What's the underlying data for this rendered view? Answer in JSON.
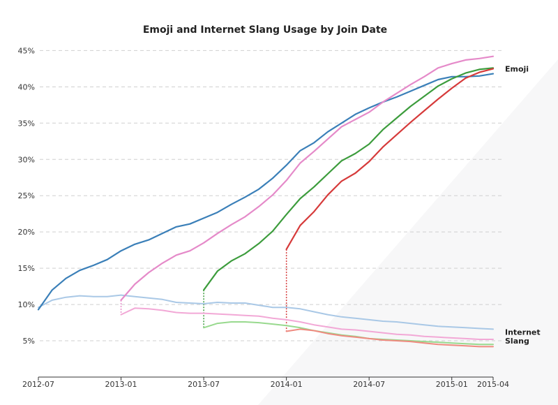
{
  "chart_data": {
    "type": "line",
    "title": "Emoji and Internet Slang Usage by Join Date",
    "xlabel": "",
    "ylabel": "",
    "x_range": [
      0,
      33
    ],
    "ylim": [
      0,
      46
    ],
    "y_ticks": [
      {
        "value": 5,
        "label": "5%"
      },
      {
        "value": 10,
        "label": "10%"
      },
      {
        "value": 15,
        "label": "15%"
      },
      {
        "value": 20,
        "label": "20%"
      },
      {
        "value": 25,
        "label": "25%"
      },
      {
        "value": 30,
        "label": "30%"
      },
      {
        "value": 35,
        "label": "35%"
      },
      {
        "value": 40,
        "label": "40%"
      },
      {
        "value": 45,
        "label": "45%"
      }
    ],
    "x_ticks": [
      {
        "value": 0,
        "label": "2012-07"
      },
      {
        "value": 6,
        "label": "2013-01"
      },
      {
        "value": 12,
        "label": "2013-07"
      },
      {
        "value": 18,
        "label": "2014-01"
      },
      {
        "value": 24,
        "label": "2014-07"
      },
      {
        "value": 30,
        "label": "2015-01"
      },
      {
        "value": 33,
        "label": "2015-04"
      }
    ],
    "grid": true,
    "end_labels": [
      {
        "text": "Emoji",
        "y": 42.5
      },
      {
        "text": "Internet",
        "y": 6.2
      },
      {
        "text": "Slang",
        "y": 5.0
      }
    ],
    "series": [
      {
        "name": "Emoji (joined 2012-07)",
        "color": "#3a7fb8",
        "width": 2.2,
        "start": 0,
        "values": [
          9.3,
          12.0,
          13.6,
          14.7,
          15.4,
          16.2,
          17.4,
          18.3,
          18.9,
          19.8,
          20.7,
          21.1,
          21.9,
          22.7,
          23.8,
          24.8,
          25.9,
          27.4,
          29.2,
          31.2,
          32.3,
          33.8,
          35.0,
          36.2,
          37.1,
          37.9,
          38.6,
          39.4,
          40.2,
          41.0,
          41.4,
          41.4,
          41.5,
          41.8
        ]
      },
      {
        "name": "Emoji (joined 2013-01)",
        "color": "#e58ac9",
        "width": 2.2,
        "start": 6,
        "values": [
          10.6,
          12.8,
          14.4,
          15.7,
          16.8,
          17.4,
          18.5,
          19.8,
          21.0,
          22.1,
          23.5,
          25.1,
          27.1,
          29.5,
          31.1,
          32.8,
          34.5,
          35.5,
          36.5,
          37.9,
          39.1,
          40.3,
          41.4,
          42.6,
          43.2,
          43.7,
          43.9,
          44.2
        ]
      },
      {
        "name": "Emoji (joined 2013-07)",
        "color": "#3c9c3c",
        "width": 2.2,
        "start": 12,
        "values": [
          12.0,
          14.6,
          16.0,
          17.0,
          18.4,
          20.1,
          22.4,
          24.6,
          26.2,
          28.0,
          29.8,
          30.8,
          32.1,
          34.1,
          35.7,
          37.3,
          38.7,
          40.1,
          41.1,
          41.9,
          42.4,
          42.6
        ]
      },
      {
        "name": "Emoji (joined 2014-01)",
        "color": "#d63a3a",
        "width": 2.2,
        "start": 18,
        "values": [
          17.6,
          20.9,
          22.8,
          25.1,
          27.0,
          28.1,
          29.7,
          31.7,
          33.4,
          35.1,
          36.7,
          38.3,
          39.8,
          41.2,
          42.0,
          42.5
        ]
      },
      {
        "name": "Internet Slang (joined 2012-07)",
        "color": "#a9c8e6",
        "width": 2,
        "start": 0,
        "values": [
          9.6,
          10.6,
          11.0,
          11.2,
          11.1,
          11.1,
          11.3,
          11.1,
          10.9,
          10.7,
          10.3,
          10.2,
          10.1,
          10.3,
          10.2,
          10.2,
          9.9,
          9.6,
          9.6,
          9.4,
          9.0,
          8.6,
          8.3,
          8.1,
          7.9,
          7.7,
          7.6,
          7.4,
          7.2,
          7.0,
          6.9,
          6.8,
          6.7,
          6.6
        ]
      },
      {
        "name": "Internet Slang (joined 2013-01)",
        "color": "#f2a8d6",
        "width": 2,
        "start": 6,
        "values": [
          8.6,
          9.5,
          9.4,
          9.2,
          8.9,
          8.8,
          8.8,
          8.7,
          8.6,
          8.5,
          8.4,
          8.1,
          7.9,
          7.6,
          7.2,
          6.9,
          6.6,
          6.5,
          6.3,
          6.1,
          5.9,
          5.8,
          5.6,
          5.5,
          5.4,
          5.3,
          5.2,
          5.2
        ]
      },
      {
        "name": "Internet Slang (joined 2013-07)",
        "color": "#98d98e",
        "width": 2,
        "start": 12,
        "values": [
          6.8,
          7.4,
          7.6,
          7.6,
          7.5,
          7.3,
          7.1,
          6.8,
          6.4,
          6.1,
          5.8,
          5.6,
          5.3,
          5.2,
          5.1,
          5.0,
          4.9,
          4.8,
          4.7,
          4.6,
          4.5,
          4.5
        ]
      },
      {
        "name": "Internet Slang (joined 2014-01)",
        "color": "#ef8a80",
        "width": 2,
        "start": 18,
        "values": [
          6.3,
          6.6,
          6.4,
          6.0,
          5.7,
          5.5,
          5.3,
          5.1,
          5.0,
          4.9,
          4.7,
          4.5,
          4.4,
          4.3,
          4.2,
          4.2
        ]
      }
    ],
    "connectors": [
      {
        "x": 6,
        "from": 10.6,
        "to": 8.6,
        "color": "#e58ac9"
      },
      {
        "x": 12,
        "from": 12.0,
        "to": 6.8,
        "color": "#3c9c3c"
      },
      {
        "x": 18,
        "from": 17.6,
        "to": 6.3,
        "color": "#d63a3a"
      }
    ]
  }
}
